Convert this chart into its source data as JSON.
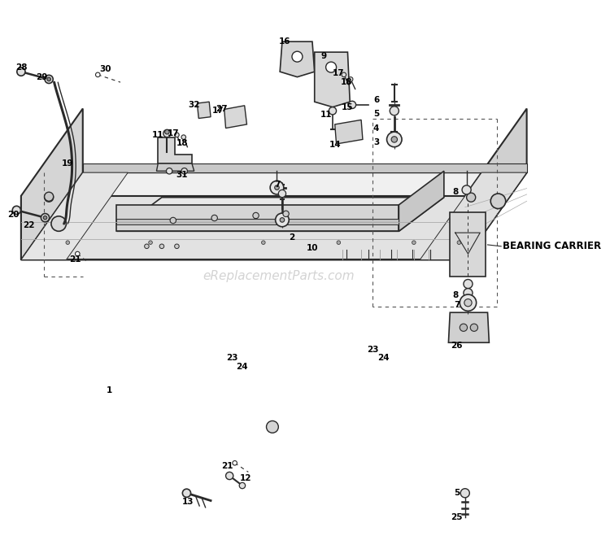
{
  "bg_color": "#ffffff",
  "line_color": "#2a2a2a",
  "fill_top": "#f2f2f2",
  "fill_left": "#d8d8d8",
  "fill_front": "#e8e8e8",
  "fill_right": "#c8c8c8",
  "fill_inner_top": "#eeeeee",
  "fill_rail": "#d0d0d0",
  "fill_dark": "#b8b8b8",
  "watermark_color": "#cccccc",
  "watermark_text": "eReplacementParts.com",
  "bearing_carrier_text": "BEARING CARRIER"
}
